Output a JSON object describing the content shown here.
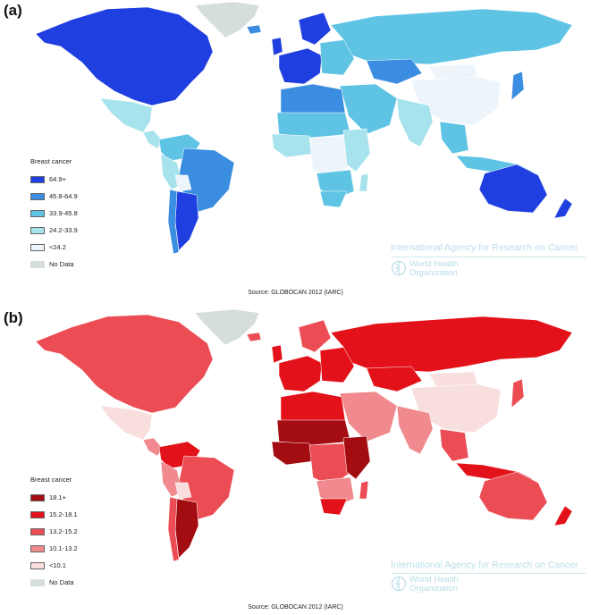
{
  "panels": [
    {
      "label": "(a)",
      "legend": {
        "title": "Breast cancer",
        "items": [
          {
            "label": "64.9+",
            "color": "#1f3fe0"
          },
          {
            "label": "45.8-64.9",
            "color": "#3a8de0"
          },
          {
            "label": "33.9-45.8",
            "color": "#5fc4e4"
          },
          {
            "label": "24.2-33.9",
            "color": "#a6e3ec"
          },
          {
            "label": "<24.2",
            "color": "#eef5fa"
          },
          {
            "label": "No Data",
            "color": "#d6dedd"
          }
        ]
      },
      "source": "Source: GLOBOCAN 2012 (IARC)",
      "agency": "International Agency for Research on Cancer",
      "who": {
        "line1": "World Health",
        "line2": "Organization"
      }
    },
    {
      "label": "(b)",
      "legend": {
        "title": "Breast cancer",
        "items": [
          {
            "label": "18.1+",
            "color": "#a30d12"
          },
          {
            "label": "15.2-18.1",
            "color": "#e3121a"
          },
          {
            "label": "13.2-15.2",
            "color": "#ec4d55"
          },
          {
            "label": "10.1-13.2",
            "color": "#f08a8e"
          },
          {
            "label": "<10.1",
            "color": "#f9dede"
          },
          {
            "label": "No Data",
            "color": "#d6dedd"
          }
        ]
      },
      "source": "Source: GLOBOCAN 2012 (IARC)",
      "agency": "International Agency for Research on Cancer",
      "who": {
        "line1": "World Health",
        "line2": "Organization"
      }
    }
  ],
  "regions": {
    "a": {
      "north_america": "#1f3fe0",
      "greenland": "#d6dedd",
      "mexico": "#a6e3ec",
      "central_america": "#a6e3ec",
      "venezuela_colombia": "#5fc4e4",
      "brazil": "#3a8de0",
      "andes": "#a6e3ec",
      "bolivia": "#eef5fa",
      "argentina": "#1f3fe0",
      "chile": "#3a8de0",
      "western_europe": "#1f3fe0",
      "scandinavia": "#1f3fe0",
      "eastern_europe": "#5fc4e4",
      "russia": "#5fc4e4",
      "kazakhstan": "#3a8de0",
      "middle_east": "#5fc4e4",
      "north_africa": "#3a8de0",
      "sahel": "#5fc4e4",
      "west_africa": "#a6e3ec",
      "central_africa": "#eef5fa",
      "east_africa": "#a6e3ec",
      "southern_africa": "#5fc4e4",
      "south_africa": "#5fc4e4",
      "madagascar": "#a6e3ec",
      "india": "#a6e3ec",
      "china": "#eef5fa",
      "mongolia": "#eef5fa",
      "japan": "#3a8de0",
      "southeast_asia": "#5fc4e4",
      "indonesia": "#5fc4e4",
      "australia": "#1f3fe0",
      "new_zealand": "#1f3fe0",
      "uk": "#1f3fe0",
      "iceland": "#3a8de0"
    },
    "b": {
      "north_america": "#ec4d55",
      "greenland": "#d6dedd",
      "mexico": "#f9dede",
      "central_america": "#f08a8e",
      "venezuela_colombia": "#e3121a",
      "brazil": "#ec4d55",
      "andes": "#f08a8e",
      "bolivia": "#f9dede",
      "argentina": "#a30d12",
      "chile": "#ec4d55",
      "western_europe": "#e3121a",
      "scandinavia": "#ec4d55",
      "eastern_europe": "#e3121a",
      "russia": "#e3121a",
      "kazakhstan": "#e3121a",
      "middle_east": "#f08a8e",
      "north_africa": "#e3121a",
      "sahel": "#a30d12",
      "west_africa": "#a30d12",
      "central_africa": "#ec4d55",
      "east_africa": "#a30d12",
      "southern_africa": "#f08a8e",
      "south_africa": "#e3121a",
      "madagascar": "#ec4d55",
      "india": "#f08a8e",
      "china": "#f9dede",
      "mongolia": "#f9dede",
      "japan": "#ec4d55",
      "southeast_asia": "#ec4d55",
      "indonesia": "#e3121a",
      "australia": "#ec4d55",
      "new_zealand": "#e3121a",
      "uk": "#e3121a",
      "iceland": "#ec4d55"
    }
  }
}
